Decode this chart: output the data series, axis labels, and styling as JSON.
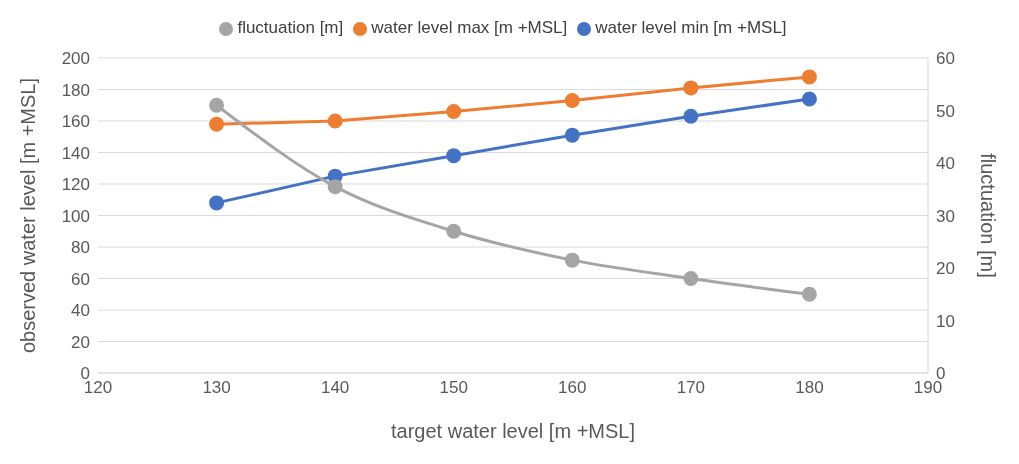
{
  "chart_data": {
    "type": "line",
    "xlabel": "target water level [m +MSL]",
    "ylabel": "observed water level [m +MSL]",
    "y2label": "fluctuation [m]",
    "x": [
      130,
      140,
      150,
      160,
      170,
      180
    ],
    "series": [
      {
        "name": "water level min [m +MSL]",
        "color": "#4472c4",
        "values": [
          108,
          125,
          138,
          151,
          163,
          174
        ]
      },
      {
        "name": "water level max [m +MSL]",
        "color": "#ed7d31",
        "values": [
          158,
          160,
          166,
          173,
          181,
          188
        ]
      },
      {
        "name": "fluctuation [m]",
        "color": "#a5a5a5",
        "axis": "y2",
        "values": [
          51,
          35.5,
          27,
          21.5,
          18,
          15
        ]
      }
    ],
    "xlim": [
      120,
      190
    ],
    "xticks": [
      120,
      130,
      140,
      150,
      160,
      170,
      180,
      190
    ],
    "ylim": [
      0,
      200
    ],
    "yticks": [
      0,
      20,
      40,
      60,
      80,
      100,
      120,
      140,
      160,
      180,
      200
    ],
    "y2lim": [
      0,
      60
    ],
    "y2ticks": [
      0,
      10,
      20,
      30,
      40,
      50,
      60
    ],
    "grid": "y",
    "legend": "top",
    "marker": "circle",
    "line_style": "solid"
  }
}
